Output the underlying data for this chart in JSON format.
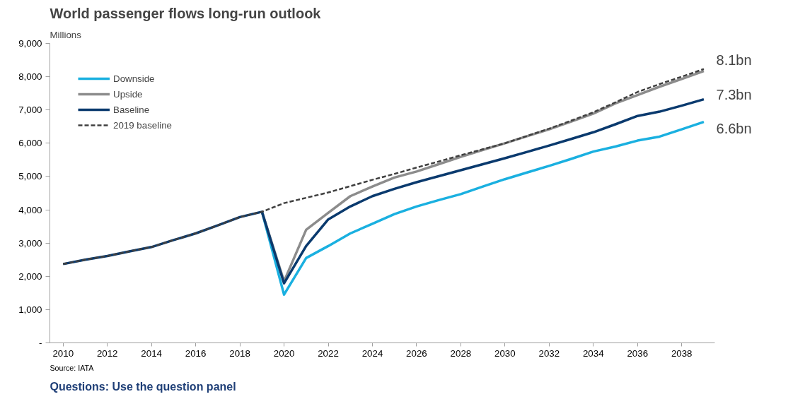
{
  "chart_data": {
    "type": "line",
    "title": "World passenger flows long-run outlook",
    "ylabel": "Millions",
    "x": [
      2010,
      2011,
      2012,
      2013,
      2014,
      2015,
      2016,
      2017,
      2018,
      2019,
      2020,
      2021,
      2022,
      2023,
      2024,
      2025,
      2026,
      2027,
      2028,
      2029,
      2030,
      2031,
      2032,
      2033,
      2034,
      2035,
      2036,
      2037,
      2038,
      2039
    ],
    "series": [
      {
        "name": "Downside",
        "color": "#1ab0e0",
        "values": [
          null,
          null,
          null,
          null,
          null,
          null,
          null,
          null,
          null,
          3940,
          1450,
          2550,
          2910,
          3290,
          3580,
          3870,
          4100,
          4290,
          4470,
          4700,
          4920,
          5120,
          5320,
          5530,
          5750,
          5900,
          6080,
          6200,
          6420,
          6640
        ]
      },
      {
        "name": "Upside",
        "color": "#8c8c8c",
        "values": [
          null,
          null,
          null,
          null,
          null,
          null,
          null,
          null,
          null,
          3940,
          1850,
          3400,
          3910,
          4410,
          4700,
          4970,
          5150,
          5370,
          5590,
          5800,
          6000,
          6210,
          6420,
          6650,
          6890,
          7200,
          7450,
          7700,
          7930,
          8170
        ]
      },
      {
        "name": "Baseline",
        "color": "#0a3a6e",
        "values": [
          2370,
          2500,
          2610,
          2750,
          2880,
          3090,
          3290,
          3530,
          3780,
          3940,
          1790,
          2910,
          3710,
          4100,
          4410,
          4630,
          4830,
          5010,
          5190,
          5370,
          5550,
          5740,
          5930,
          6130,
          6330,
          6570,
          6820,
          6950,
          7130,
          7320
        ]
      },
      {
        "name": "2019 baseline",
        "color": "#404040",
        "line_style": "dashed",
        "values": [
          2370,
          2500,
          2610,
          2750,
          2880,
          3090,
          3290,
          3530,
          3780,
          3940,
          4200,
          4360,
          4520,
          4710,
          4900,
          5080,
          5270,
          5450,
          5640,
          5820,
          6000,
          6220,
          6440,
          6680,
          6930,
          7230,
          7540,
          7780,
          8000,
          8230
        ]
      }
    ],
    "xlim": [
      2009.4,
      2039.5
    ],
    "xticks": [
      2010,
      2012,
      2014,
      2016,
      2018,
      2020,
      2022,
      2024,
      2026,
      2028,
      2030,
      2032,
      2034,
      2036,
      2038
    ],
    "ylim": [
      0,
      9000
    ],
    "yticks": [
      {
        "value": 0,
        "label": "-"
      },
      {
        "value": 1000,
        "label": "1,000"
      },
      {
        "value": 2000,
        "label": "2,000"
      },
      {
        "value": 3000,
        "label": "3,000"
      },
      {
        "value": 4000,
        "label": "4,000"
      },
      {
        "value": 5000,
        "label": "5,000"
      },
      {
        "value": 6000,
        "label": "6,000"
      },
      {
        "value": 7000,
        "label": "7,000"
      },
      {
        "value": 8000,
        "label": "8,000"
      },
      {
        "value": 9000,
        "label": "9,000"
      }
    ],
    "grid": false,
    "legend": "top left",
    "line_style": "solid",
    "marker": "none",
    "annotations": [
      "8.1bn",
      "7.3bn",
      "6.6bn",
      "Source: IATA",
      "Questions: Use the question panel"
    ]
  }
}
